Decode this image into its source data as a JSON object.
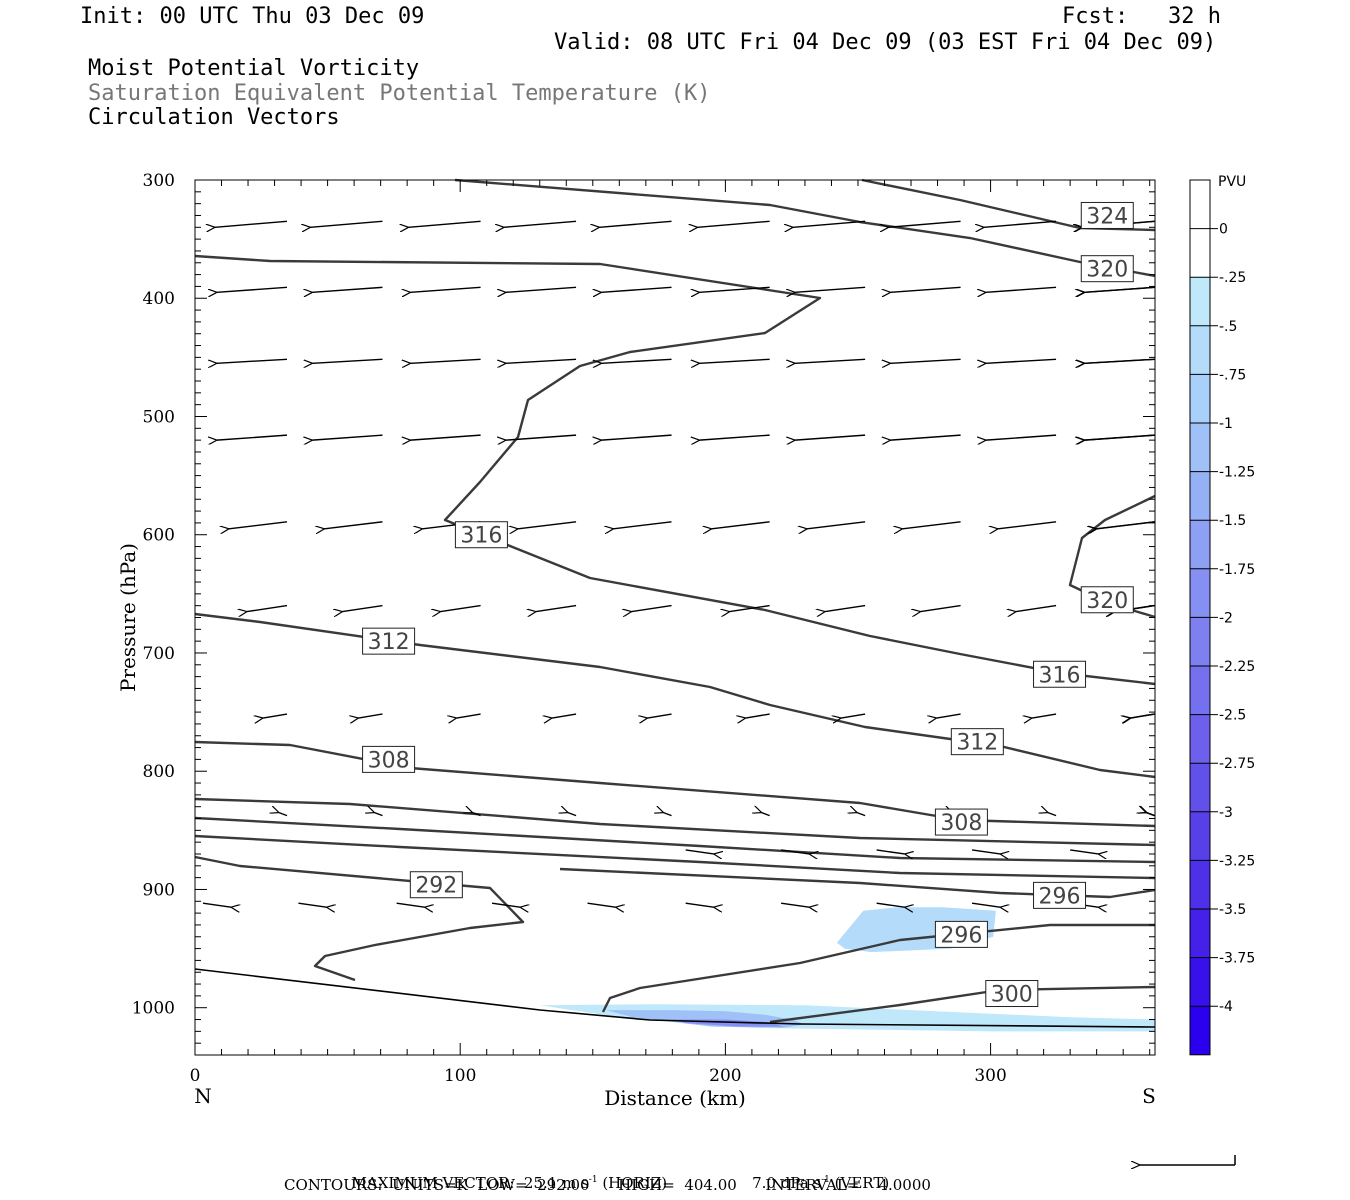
{
  "header": {
    "init": "Init: 00 UTC Thu 03 Dec 09",
    "fcst": "Fcst:   32 h",
    "valid": "Valid: 08 UTC Fri 04 Dec 09 (03 EST Fri 04 Dec 09)",
    "title_line1": "Moist Potential Vorticity",
    "title_line2": "Saturation Equivalent Potential Temperature (K)",
    "title_line3": "Circulation Vectors"
  },
  "footer": {
    "line1_a": "MAXIMUM VECTOR:  25.1 m s",
    "line1_b": "-1",
    "line1_c": " (HORIZ)",
    "line1_d": "7.0 dPa s",
    "line1_e": "-1",
    "line1_f": " (VERT)",
    "line2": "CONTOURS:  UNITS=K  LOW=  292.00      HIGH=  404.00      INTERVAL=    4.0000"
  },
  "chart_data": {
    "type": "contour",
    "xlabel": "Distance (km)",
    "ylabel": "Pressure (hPa)",
    "xlim": [
      0,
      362
    ],
    "ylim": [
      1040,
      300
    ],
    "x_ticks": [
      "0",
      "100",
      "200",
      "300"
    ],
    "x_tick_values": [
      0,
      100,
      200,
      300
    ],
    "y_ticks": [
      "300",
      "400",
      "500",
      "600",
      "700",
      "800",
      "900",
      "1000"
    ],
    "y_tick_values": [
      300,
      400,
      500,
      600,
      700,
      800,
      900,
      1000
    ],
    "x_end_labels": {
      "left": "N",
      "right": "S"
    },
    "colorbar": {
      "units": "PVU",
      "labels": [
        "0",
        "-.25",
        "-.5",
        "-.75",
        "-1",
        "-1.25",
        "-1.5",
        "-1.75",
        "-2",
        "-2.25",
        "-2.5",
        "-2.75",
        "-3",
        "-3.25",
        "-3.5",
        "-3.75",
        "-4"
      ],
      "colors": [
        "#ffffff",
        "#ffffff",
        "#bfe8fa",
        "#b4dcfa",
        "#a9d0fa",
        "#a0c0f8",
        "#96b0f6",
        "#8ea0f4",
        "#8690f2",
        "#7e80f0",
        "#7570ee",
        "#6c60ec",
        "#6250ea",
        "#5840e8",
        "#4e30e8",
        "#4420e8",
        "#3810ea",
        "#2a00ee"
      ]
    },
    "contour_labels": [
      {
        "text": "324",
        "x": 344,
        "p": 330
      },
      {
        "text": "320",
        "x": 344,
        "p": 375
      },
      {
        "text": "316",
        "x": 108,
        "p": 600
      },
      {
        "text": "320",
        "x": 344,
        "p": 655
      },
      {
        "text": "312",
        "x": 73,
        "p": 690
      },
      {
        "text": "316",
        "x": 326,
        "p": 718
      },
      {
        "text": "308",
        "x": 73,
        "p": 790
      },
      {
        "text": "312",
        "x": 295,
        "p": 775
      },
      {
        "text": "308",
        "x": 289,
        "p": 843
      },
      {
        "text": "292",
        "x": 91,
        "p": 896
      },
      {
        "text": "296",
        "x": 326,
        "p": 905
      },
      {
        "text": "296",
        "x": 289,
        "p": 938
      },
      {
        "text": "300",
        "x": 308,
        "p": 988
      }
    ],
    "shaded_regions": [
      {
        "pvu": "-.5",
        "x": [
          242,
          252,
          265,
          282,
          302,
          301,
          285,
          255,
          245,
          242
        ],
        "p": [
          945,
          918,
          915,
          915,
          918,
          940,
          950,
          953,
          950,
          945
        ]
      },
      {
        "pvu": "-.25",
        "x": [
          130,
          175,
          230,
          270,
          330,
          362,
          362,
          300,
          210,
          160,
          130
        ],
        "p": [
          998,
          997,
          998,
          1002,
          1008,
          1010,
          1020,
          1020,
          1017,
          1008,
          998
        ]
      },
      {
        "pvu": "-1",
        "x": [
          155,
          180,
          200,
          215,
          225,
          230,
          222,
          195,
          165,
          155
        ],
        "p": [
          1002,
          1002,
          1003,
          1006,
          1010,
          1014,
          1017,
          1016,
          1008,
          1002
        ]
      },
      {
        "pvu": "-1.75",
        "x": [
          180,
          200,
          215,
          222,
          205,
          185,
          180
        ],
        "p": [
          1010,
          1010,
          1012,
          1016,
          1016,
          1013,
          1010
        ]
      }
    ]
  }
}
